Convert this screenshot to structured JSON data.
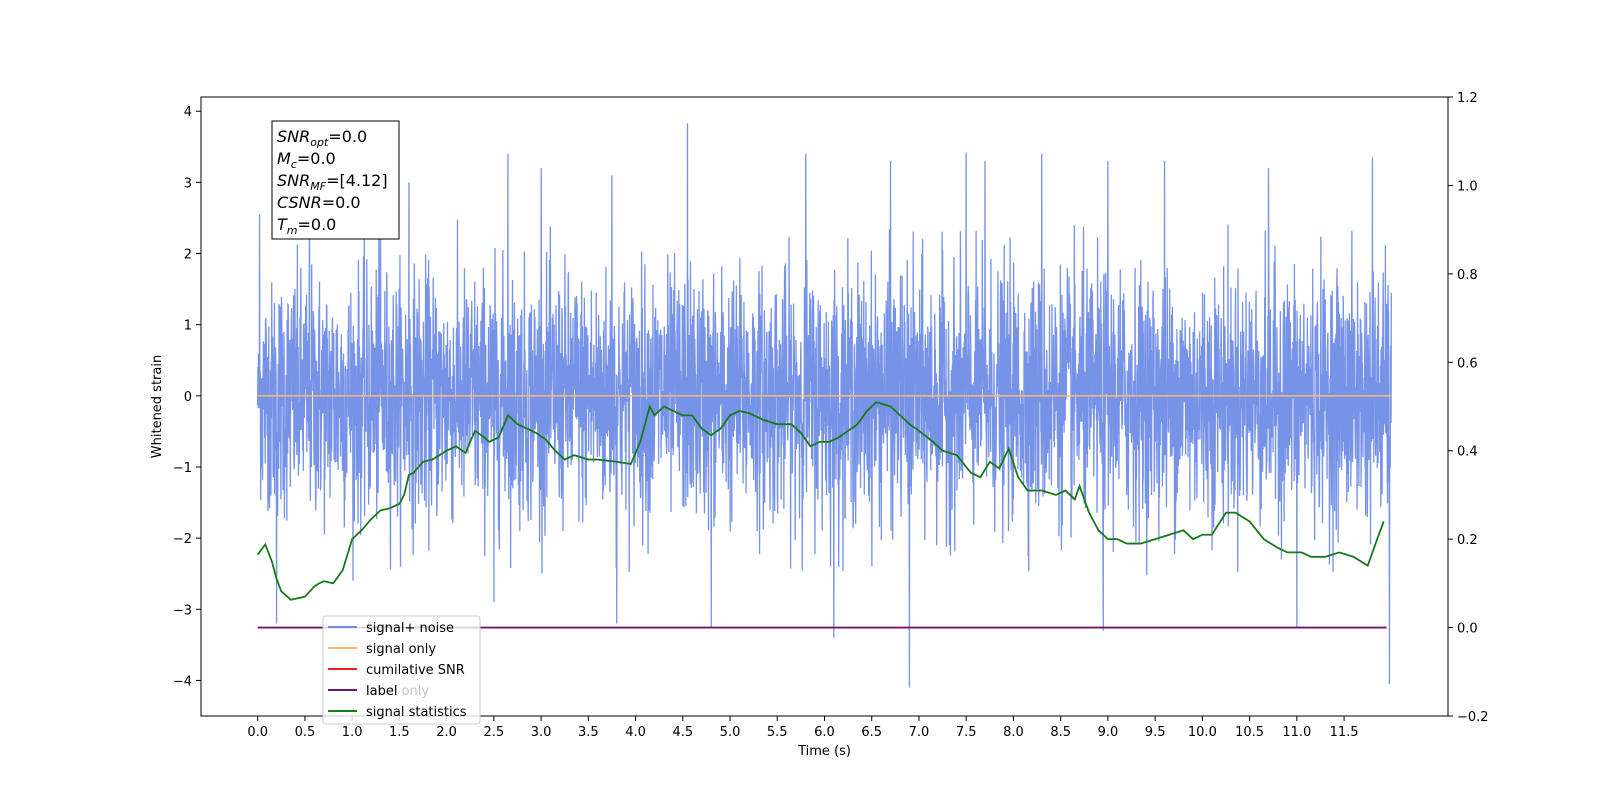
{
  "chart_data": {
    "type": "line",
    "xlabel": "Time (s)",
    "ylabel": "Whitened strain",
    "xlim": [
      -0.6,
      12.6
    ],
    "ylim": [
      -4.5,
      4.2
    ],
    "y2lim": [
      -0.2,
      1.2
    ],
    "grid": false,
    "legend_position": "lower-left",
    "xticks": [
      0.0,
      0.5,
      1.0,
      1.5,
      2.0,
      2.5,
      3.0,
      3.5,
      4.0,
      4.5,
      5.0,
      5.5,
      6.0,
      6.5,
      7.0,
      7.5,
      8.0,
      8.5,
      9.0,
      9.5,
      10.0,
      10.5,
      11.0,
      11.5
    ],
    "xtick_labels": [
      "0.0",
      "0.5",
      "1.0",
      "1.5",
      "2.0",
      "2.5",
      "3.0",
      "3.5",
      "4.0",
      "4.5",
      "5.0",
      "5.5",
      "6.0",
      "6.5",
      "7.0",
      "7.5",
      "8.0",
      "8.5",
      "9.0",
      "9.5",
      "10.0",
      "10.5",
      "11.0",
      "11.5"
    ],
    "yticks": [
      4,
      3,
      2,
      1,
      0,
      -1,
      -2,
      -3,
      -4
    ],
    "ytick_labels": [
      "4",
      "3",
      "2",
      "1",
      "0",
      "−1",
      "−2",
      "−3",
      "−4"
    ],
    "y2ticks": [
      1.2,
      1.0,
      0.8,
      0.6,
      0.4,
      0.2,
      0.0,
      -0.2
    ],
    "y2tick_labels": [
      "1.2",
      "1.0",
      "0.8",
      "0.6",
      "0.4",
      "0.2",
      "0.0",
      "−0.2"
    ],
    "series": [
      {
        "name": "signal+ noise",
        "color": "#6b8ae6",
        "axis": "left",
        "x_range": [
          0.0,
          12.0
        ],
        "envelope_positive": [
          1.3,
          2.3,
          2.6,
          2.4,
          2.5,
          2.4,
          2.4,
          2.3,
          2.5,
          2.5,
          2.4,
          2.4,
          2.6,
          2.4,
          2.4,
          2.3,
          2.4,
          2.4,
          2.4,
          2.5,
          2.4,
          2.5,
          2.4,
          2.5,
          2.4
        ],
        "envelope_negative": [
          -1.4,
          -2.4,
          -2.6,
          -2.4,
          -2.5,
          -2.4,
          -2.5,
          -2.4,
          -2.6,
          -2.4,
          -2.5,
          -2.4,
          -2.5,
          -2.4,
          -2.5,
          -2.4,
          -2.5,
          -2.4,
          -2.6,
          -2.5,
          -2.4,
          -2.5,
          -2.4,
          -2.5,
          -2.5
        ],
        "spikes": [
          [
            0.02,
            2.55
          ],
          [
            0.2,
            -3.2
          ],
          [
            0.55,
            2.9
          ],
          [
            1.3,
            3.1
          ],
          [
            1.6,
            3.0
          ],
          [
            2.65,
            3.4
          ],
          [
            2.5,
            -2.9
          ],
          [
            3.75,
            3.1
          ],
          [
            3.8,
            -3.2
          ],
          [
            4.55,
            3.83
          ],
          [
            4.8,
            -3.25
          ],
          [
            5.8,
            3.4
          ],
          [
            6.1,
            -3.4
          ],
          [
            6.7,
            3.3
          ],
          [
            6.9,
            -4.1
          ],
          [
            7.5,
            3.42
          ],
          [
            7.7,
            3.3
          ],
          [
            8.3,
            3.4
          ],
          [
            9.0,
            3.3
          ],
          [
            8.95,
            -3.3
          ],
          [
            9.6,
            3.3
          ],
          [
            11.0,
            -3.25
          ],
          [
            11.8,
            3.35
          ],
          [
            11.98,
            -4.05
          ],
          [
            3.0,
            3.2
          ],
          [
            10.7,
            3.2
          ]
        ]
      },
      {
        "name": "signal only",
        "color": "#f5b971",
        "axis": "left",
        "x": [
          0.0,
          12.0
        ],
        "y": [
          0.0,
          0.0
        ]
      },
      {
        "name": "cumilative SNR",
        "color": "#e8231c",
        "axis": "right",
        "x": [],
        "y": []
      },
      {
        "name": "label",
        "color": "#6f1570",
        "axis": "right",
        "x": [
          0.0,
          11.95
        ],
        "y": [
          0.0,
          0.0
        ]
      },
      {
        "name": "signal statistics",
        "color": "#177a17",
        "axis": "right",
        "x": [
          0.0,
          0.08,
          0.15,
          0.2,
          0.25,
          0.35,
          0.5,
          0.6,
          0.65,
          0.7,
          0.8,
          0.9,
          1.0,
          1.1,
          1.2,
          1.3,
          1.4,
          1.5,
          1.55,
          1.6,
          1.65,
          1.75,
          1.85,
          2.0,
          2.1,
          2.2,
          2.3,
          2.4,
          2.45,
          2.55,
          2.65,
          2.75,
          2.85,
          2.95,
          3.05,
          3.15,
          3.25,
          3.35,
          3.5,
          3.6,
          3.8,
          3.95,
          4.05,
          4.15,
          4.2,
          4.3,
          4.4,
          4.5,
          4.6,
          4.7,
          4.8,
          4.9,
          5.0,
          5.1,
          5.2,
          5.35,
          5.5,
          5.65,
          5.75,
          5.85,
          5.95,
          6.05,
          6.15,
          6.25,
          6.35,
          6.45,
          6.55,
          6.7,
          6.9,
          7.0,
          7.15,
          7.25,
          7.4,
          7.55,
          7.65,
          7.75,
          7.85,
          7.95,
          8.05,
          8.15,
          8.3,
          8.45,
          8.55,
          8.65,
          8.7,
          8.8,
          8.9,
          9.0,
          9.1,
          9.2,
          9.35,
          9.5,
          9.65,
          9.8,
          9.9,
          10.0,
          10.1,
          10.25,
          10.35,
          10.5,
          10.65,
          10.8,
          10.9,
          11.05,
          11.15,
          11.3,
          11.45,
          11.6,
          11.75,
          11.85,
          11.92
        ],
        "y": [
          0.165,
          0.188,
          0.15,
          0.11,
          0.082,
          0.063,
          0.07,
          0.093,
          0.1,
          0.105,
          0.1,
          0.13,
          0.2,
          0.22,
          0.245,
          0.265,
          0.27,
          0.28,
          0.3,
          0.345,
          0.35,
          0.375,
          0.38,
          0.4,
          0.41,
          0.395,
          0.445,
          0.43,
          0.42,
          0.43,
          0.48,
          0.46,
          0.45,
          0.44,
          0.425,
          0.4,
          0.38,
          0.39,
          0.38,
          0.38,
          0.375,
          0.37,
          0.42,
          0.5,
          0.48,
          0.5,
          0.49,
          0.48,
          0.48,
          0.45,
          0.435,
          0.45,
          0.48,
          0.49,
          0.485,
          0.47,
          0.46,
          0.46,
          0.44,
          0.41,
          0.42,
          0.42,
          0.43,
          0.445,
          0.46,
          0.49,
          0.51,
          0.5,
          0.46,
          0.445,
          0.42,
          0.4,
          0.39,
          0.35,
          0.34,
          0.375,
          0.36,
          0.405,
          0.34,
          0.31,
          0.31,
          0.3,
          0.31,
          0.29,
          0.32,
          0.26,
          0.22,
          0.2,
          0.2,
          0.19,
          0.19,
          0.2,
          0.21,
          0.22,
          0.2,
          0.21,
          0.21,
          0.26,
          0.26,
          0.24,
          0.2,
          0.18,
          0.17,
          0.17,
          0.16,
          0.16,
          0.17,
          0.16,
          0.14,
          0.2,
          0.24
        ]
      }
    ],
    "legend": [
      "signal+ noise",
      "signal only",
      "cumilative SNR",
      "label",
      "signal statistics"
    ],
    "legend_overlap_text": "label only",
    "annotation": {
      "lines": [
        {
          "main": "SNR",
          "sub": "opt",
          "rest": "=0.0"
        },
        {
          "main": "M",
          "sub": "c",
          "rest": "=0.0"
        },
        {
          "main": "SNR",
          "sub": "MF",
          "rest": "=[4.12]"
        },
        {
          "main": "CSNR",
          "sub": "",
          "rest": "=0.0"
        },
        {
          "main": "T",
          "sub": "m",
          "rest": "=0.0"
        }
      ]
    }
  }
}
